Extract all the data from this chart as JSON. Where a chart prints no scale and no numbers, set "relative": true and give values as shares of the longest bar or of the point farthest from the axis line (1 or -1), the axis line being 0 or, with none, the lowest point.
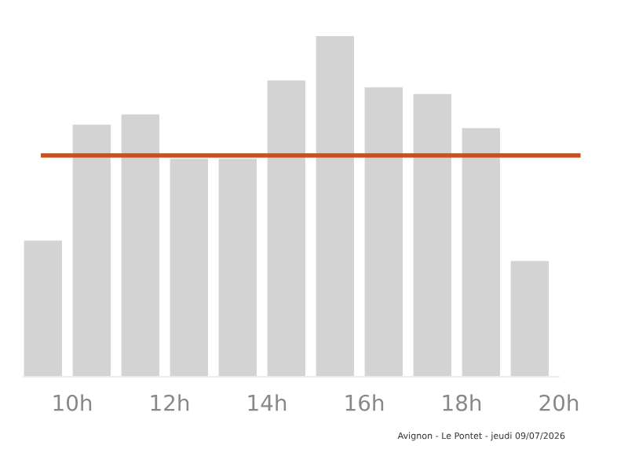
{
  "chart_data": {
    "type": "bar",
    "relative": true,
    "x": [
      9.4,
      10.4,
      11.4,
      12.4,
      13.4,
      14.4,
      15.4,
      16.4,
      17.4,
      18.4,
      19.4
    ],
    "values": [
      0.4,
      0.74,
      0.77,
      0.64,
      0.64,
      0.87,
      1,
      0.85,
      0.83,
      0.73,
      0.34
    ],
    "color": "#d3d3d3",
    "xlim": [
      9,
      20
    ],
    "xticks": [
      {
        "value": 10,
        "label": "10h"
      },
      {
        "value": 12,
        "label": "12h"
      },
      {
        "value": 14,
        "label": "14h"
      },
      {
        "value": 16,
        "label": "16h"
      },
      {
        "value": 18,
        "label": "18h"
      },
      {
        "value": 20,
        "label": "20h"
      }
    ],
    "ref_lines": [
      {
        "axis": "y",
        "value": 0.65,
        "color": "#c8501e"
      }
    ],
    "grid": false,
    "annotations": [
      "Avignon - Le Pontet - jeudi 09/07/2026"
    ]
  }
}
